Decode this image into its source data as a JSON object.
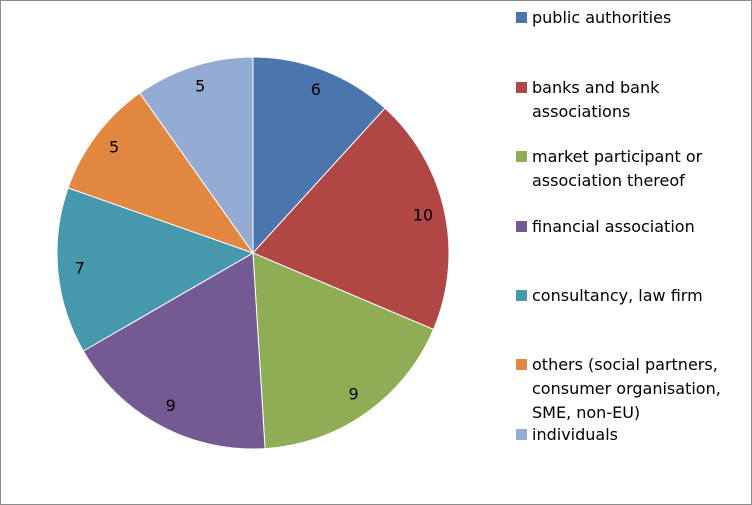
{
  "chart_data": {
    "type": "pie",
    "categories": [
      "public authorities",
      "banks and bank associations",
      "market participant or association thereof",
      "financial association",
      "consultancy, law firm",
      "others (social partners, consumer organisation, SME, non-EU)",
      "individuals"
    ],
    "values": [
      6,
      10,
      9,
      9,
      7,
      5,
      5
    ],
    "colors": [
      "#4a76ad",
      "#b04744",
      "#8fad55",
      "#735a93",
      "#4698ad",
      "#e2873f",
      "#94abd4"
    ]
  }
}
